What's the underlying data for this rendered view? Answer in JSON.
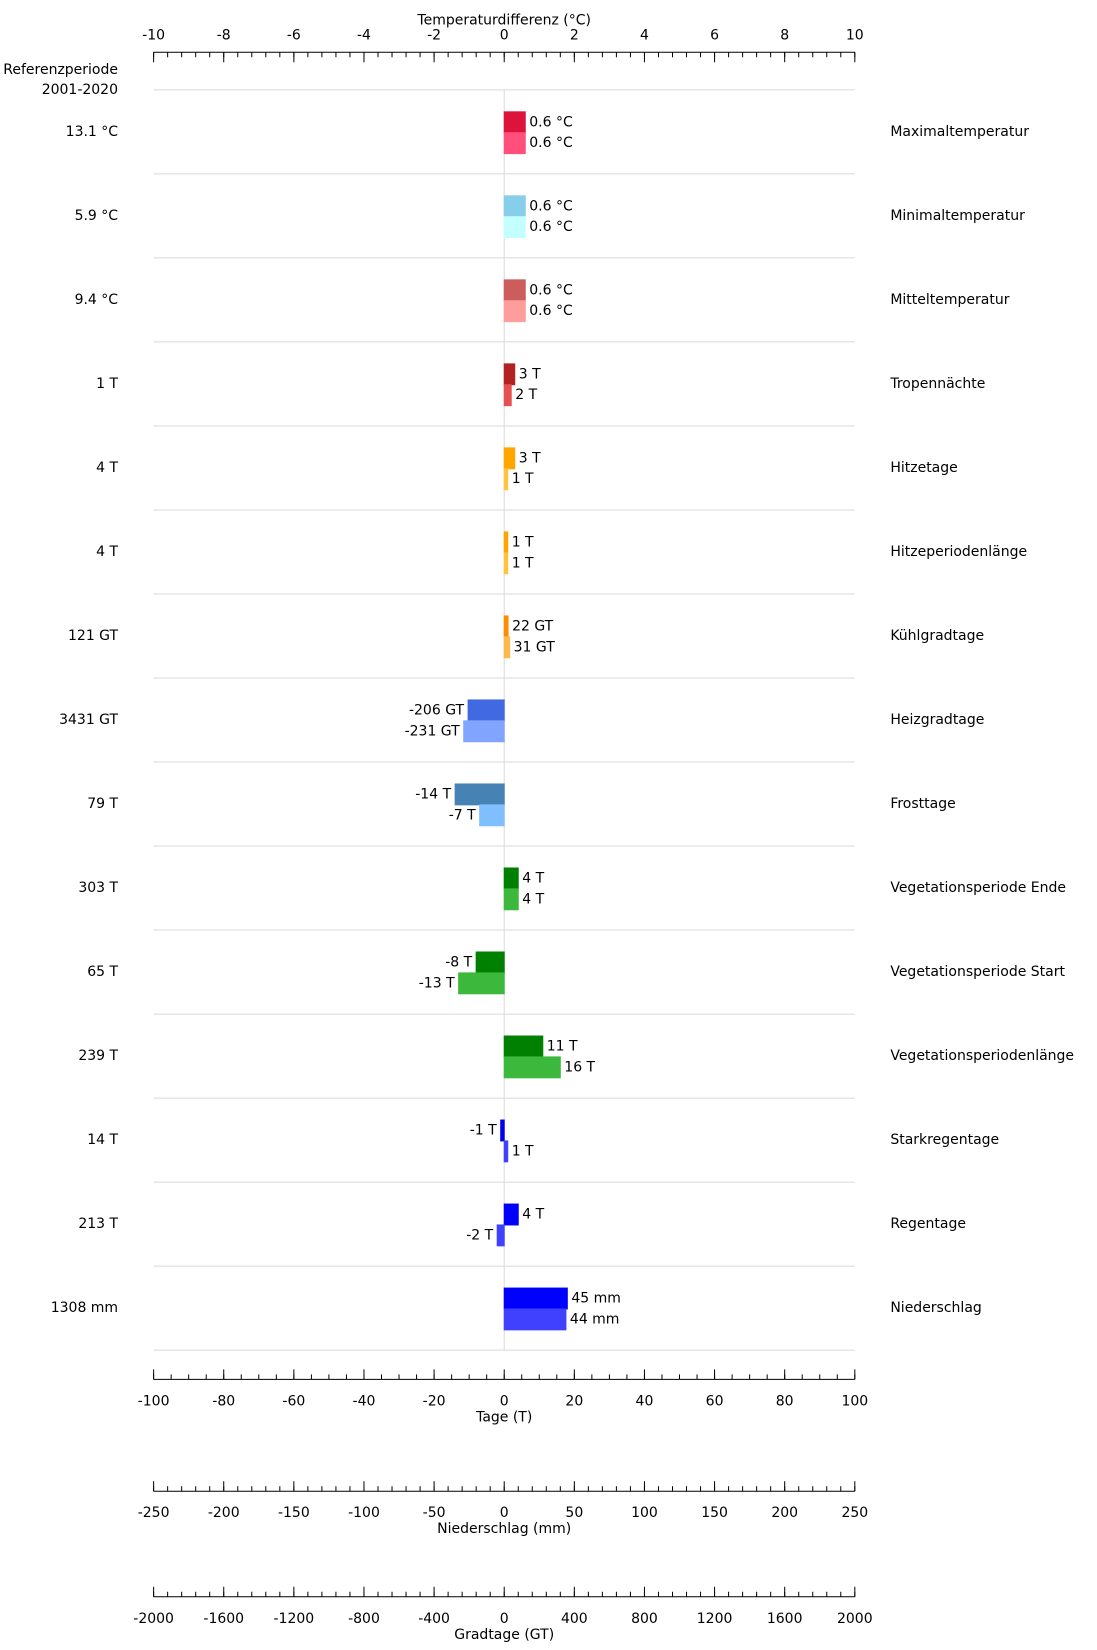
{
  "chart_data": {
    "type": "bar",
    "orientation": "horizontal",
    "reference_header": [
      "Referenzperiode",
      "2001-2020"
    ],
    "axes": [
      {
        "label": "Temperaturdifferenz (°C)",
        "xlim": [
          -10,
          10
        ],
        "xticks": [
          -10,
          -8,
          -6,
          -4,
          -2,
          0,
          2,
          4,
          6,
          8,
          10
        ],
        "minor_step": 0.4,
        "position": "top"
      },
      {
        "label": "Tage (T)",
        "xlim": [
          -100,
          100
        ],
        "xticks": [
          -100,
          -80,
          -60,
          -40,
          -20,
          0,
          20,
          40,
          60,
          80,
          100
        ],
        "minor_step": 5,
        "position": "bottom"
      },
      {
        "label": "Niederschlag (mm)",
        "xlim": [
          -250,
          250
        ],
        "xticks": [
          -250,
          -200,
          -150,
          -100,
          -50,
          0,
          50,
          100,
          150,
          200,
          250
        ],
        "minor_step": 10,
        "position": "bottom"
      },
      {
        "label": "Gradtage (GT)",
        "xlim": [
          -2000,
          2000
        ],
        "xticks": [
          -2000,
          -1600,
          -1200,
          -800,
          -400,
          0,
          400,
          800,
          1200,
          1600,
          2000
        ],
        "minor_step": 80,
        "position": "bottom"
      }
    ],
    "rows": [
      {
        "name": "Maximaltemperatur",
        "reference": "13.1 °C",
        "axis": 0,
        "values": [
          0.6,
          0.6
        ],
        "value_labels": [
          "0.6 °C",
          "0.6 °C"
        ],
        "colors": [
          "#dc143c",
          "#ff4f7a"
        ]
      },
      {
        "name": "Minimaltemperatur",
        "reference": "5.9 °C",
        "axis": 0,
        "values": [
          0.6,
          0.6
        ],
        "value_labels": [
          "0.6 °C",
          "0.6 °C"
        ],
        "colors": [
          "#87ceeb",
          "#c4ffff"
        ]
      },
      {
        "name": "Mitteltemperatur",
        "reference": "9.4 °C",
        "axis": 0,
        "values": [
          0.6,
          0.6
        ],
        "value_labels": [
          "0.6 °C",
          "0.6 °C"
        ],
        "colors": [
          "#cd5c5c",
          "#ff9c9c"
        ]
      },
      {
        "name": "Tropennächte",
        "reference": "1 T",
        "axis": 1,
        "values": [
          3,
          2
        ],
        "value_labels": [
          "3 T",
          "2 T"
        ],
        "colors": [
          "#b22222",
          "#e65050"
        ]
      },
      {
        "name": "Hitzetage",
        "reference": "4 T",
        "axis": 1,
        "values": [
          3,
          1
        ],
        "value_labels": [
          "3 T",
          "1 T"
        ],
        "colors": [
          "#ffa500",
          "#ffc340"
        ]
      },
      {
        "name": "Hitzeperiodenlänge",
        "reference": "4 T",
        "axis": 1,
        "values": [
          1,
          1
        ],
        "value_labels": [
          "1 T",
          "1 T"
        ],
        "colors": [
          "#ffa500",
          "#ffc340"
        ]
      },
      {
        "name": "Kühlgradtage",
        "reference": "121 GT",
        "axis": 3,
        "values": [
          22,
          31
        ],
        "value_labels": [
          "22 GT",
          "31 GT"
        ],
        "colors": [
          "#ff8c00",
          "#ffb84d"
        ]
      },
      {
        "name": "Heizgradtage",
        "reference": "3431 GT",
        "axis": 3,
        "values": [
          -206,
          -231
        ],
        "value_labels": [
          "-206 GT",
          "-231 GT"
        ],
        "colors": [
          "#4169e1",
          "#80a4ff"
        ]
      },
      {
        "name": "Frosttage",
        "reference": "79 T",
        "axis": 1,
        "values": [
          -14,
          -7
        ],
        "value_labels": [
          "-14 T",
          "-7 T"
        ],
        "colors": [
          "#4682b4",
          "#80bfff"
        ]
      },
      {
        "name": "Vegetationsperiode Ende",
        "reference": "303 T",
        "axis": 1,
        "values": [
          4,
          4
        ],
        "value_labels": [
          "4 T",
          "4 T"
        ],
        "colors": [
          "#008000",
          "#3cb83c"
        ]
      },
      {
        "name": "Vegetationsperiode Start",
        "reference": "65 T",
        "axis": 1,
        "values": [
          -8,
          -13
        ],
        "value_labels": [
          "-8 T",
          "-13 T"
        ],
        "colors": [
          "#008000",
          "#3cb83c"
        ]
      },
      {
        "name": "Vegetationsperiodenlänge",
        "reference": "239 T",
        "axis": 1,
        "values": [
          11,
          16
        ],
        "value_labels": [
          "11 T",
          "16 T"
        ],
        "colors": [
          "#008000",
          "#3cb83c"
        ]
      },
      {
        "name": "Starkregentage",
        "reference": "14 T",
        "axis": 1,
        "values": [
          -1,
          1
        ],
        "value_labels": [
          "-1 T",
          "1 T"
        ],
        "colors": [
          "#0000ee",
          "#4040ff"
        ]
      },
      {
        "name": "Regentage",
        "reference": "213 T",
        "axis": 1,
        "values": [
          4,
          -2
        ],
        "value_labels": [
          "4 T",
          "-2 T"
        ],
        "colors": [
          "#0000ff",
          "#4040ff"
        ]
      },
      {
        "name": "Niederschlag",
        "reference": "1308 mm",
        "axis": 2,
        "values": [
          45,
          44
        ],
        "value_labels": [
          "45 mm",
          "44 mm"
        ],
        "colors": [
          "#0000ff",
          "#4040ff"
        ]
      }
    ]
  }
}
